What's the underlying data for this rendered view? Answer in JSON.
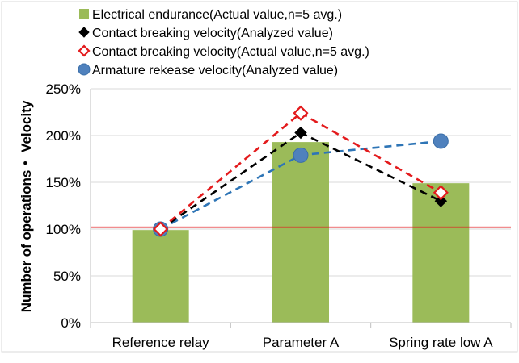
{
  "chart_data": {
    "type": "bar",
    "categories": [
      "Reference relay",
      "Parameter A",
      "Spring rate low A"
    ],
    "ylabel": "Number of operations・ Velocity",
    "xlabel": "",
    "ylim": [
      0,
      250
    ],
    "yticks": [
      "0%",
      "50%",
      "100%",
      "150%",
      "200%",
      "250%"
    ],
    "ytick_values": [
      0,
      50,
      100,
      150,
      200,
      250
    ],
    "grid": true,
    "legend_position": "top",
    "reference_line": {
      "value": 102,
      "color": "#e31a1c"
    },
    "series": [
      {
        "name": "Electrical endurance(Actual value,n=5 avg.)",
        "kind": "bar",
        "color": "#9bbb59",
        "values": [
          99,
          193,
          149
        ]
      },
      {
        "name": "Contact breaking velocity(Analyzed value)",
        "kind": "line",
        "marker": "diamond-filled",
        "color": "#000000",
        "values": [
          100,
          203,
          130
        ]
      },
      {
        "name": "Contact breaking velocity(Actual value,n=5 avg.)",
        "kind": "line",
        "marker": "diamond-open",
        "color": "#e31a1c",
        "values": [
          100,
          224,
          139
        ]
      },
      {
        "name": "Armature rekease velocity(Analyzed value)",
        "kind": "line",
        "marker": "circle",
        "color": "#4f81bd",
        "line_color": "#2e75b6",
        "values": [
          100,
          179,
          194
        ]
      }
    ]
  }
}
